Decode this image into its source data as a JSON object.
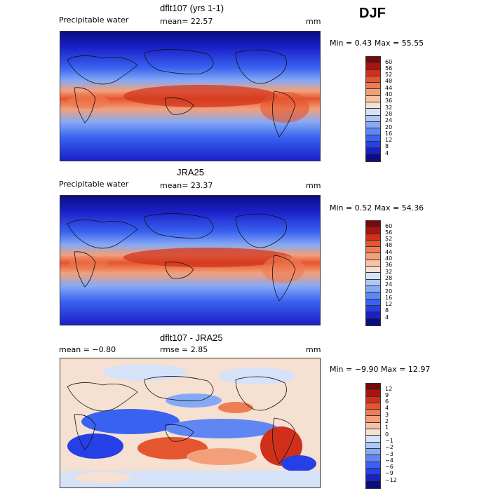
{
  "season": "DJF",
  "colors": {
    "pw": [
      "#0a0f7f",
      "#1a1fc8",
      "#2540e6",
      "#3a62f0",
      "#5f86f3",
      "#86a9f5",
      "#aec8f7",
      "#d6e2f7",
      "#f6e0d2",
      "#f7c3a6",
      "#f3a07a",
      "#ee7c54",
      "#e5552f",
      "#d0301a",
      "#a81410",
      "#7a0808"
    ],
    "diff": [
      "#0a0f7f",
      "#1a1fc8",
      "#2540e6",
      "#3a62f0",
      "#5f86f3",
      "#86a9f5",
      "#aec8f7",
      "#d6e2f7",
      "#f6e0d2",
      "#f7c3a6",
      "#f3a07a",
      "#ee7c54",
      "#e5552f",
      "#d0301a",
      "#a81410",
      "#7a0808"
    ]
  },
  "panels": [
    {
      "title": "dflt107 (yrs 1-1)",
      "left_label": "Precipitable water",
      "center_label": "mean=   22.57",
      "units": "mm",
      "minmax": "Min =    0.43  Max =   55.55",
      "colorbar_ticks": [
        "60",
        "56",
        "52",
        "48",
        "44",
        "40",
        "36",
        "32",
        "28",
        "24",
        "20",
        "16",
        "12",
        "8",
        "4"
      ],
      "kind": "pw"
    },
    {
      "title": "JRA25",
      "left_label": "Precipitable water",
      "center_label": "mean=   23.37",
      "units": "mm",
      "minmax": "Min =    0.52  Max =   54.36",
      "colorbar_ticks": [
        "60",
        "56",
        "52",
        "48",
        "44",
        "40",
        "36",
        "32",
        "28",
        "24",
        "20",
        "16",
        "12",
        "8",
        "4"
      ],
      "kind": "pw"
    },
    {
      "title": "dflt107 - JRA25",
      "left_label": "mean =   −0.80",
      "center_label": "rmse =    2.85",
      "units": "mm",
      "minmax": "Min =  −9.90  Max =   12.97",
      "colorbar_ticks": [
        "12",
        "9",
        "6",
        "4",
        "3",
        "2",
        "1",
        "0",
        "−1",
        "−2",
        "−3",
        "−4",
        "−6",
        "−9",
        "−12"
      ],
      "kind": "diff"
    }
  ],
  "chart_data": [
    {
      "type": "heatmap",
      "title": "dflt107 (yrs 1-1)",
      "variable": "Precipitable water",
      "units": "mm",
      "mean": 22.57,
      "min": 0.43,
      "max": 55.55,
      "levels": [
        4,
        8,
        12,
        16,
        20,
        24,
        28,
        32,
        36,
        40,
        44,
        48,
        52,
        56,
        60
      ]
    },
    {
      "type": "heatmap",
      "title": "JRA25",
      "variable": "Precipitable water",
      "units": "mm",
      "mean": 23.37,
      "min": 0.52,
      "max": 54.36,
      "levels": [
        4,
        8,
        12,
        16,
        20,
        24,
        28,
        32,
        36,
        40,
        44,
        48,
        52,
        56,
        60
      ]
    },
    {
      "type": "heatmap",
      "title": "dflt107 - JRA25",
      "units": "mm",
      "mean": -0.8,
      "rmse": 2.85,
      "min": -9.9,
      "max": 12.97,
      "levels": [
        -12,
        -9,
        -6,
        -4,
        -3,
        -2,
        -1,
        0,
        1,
        2,
        3,
        4,
        6,
        9,
        12
      ]
    }
  ]
}
